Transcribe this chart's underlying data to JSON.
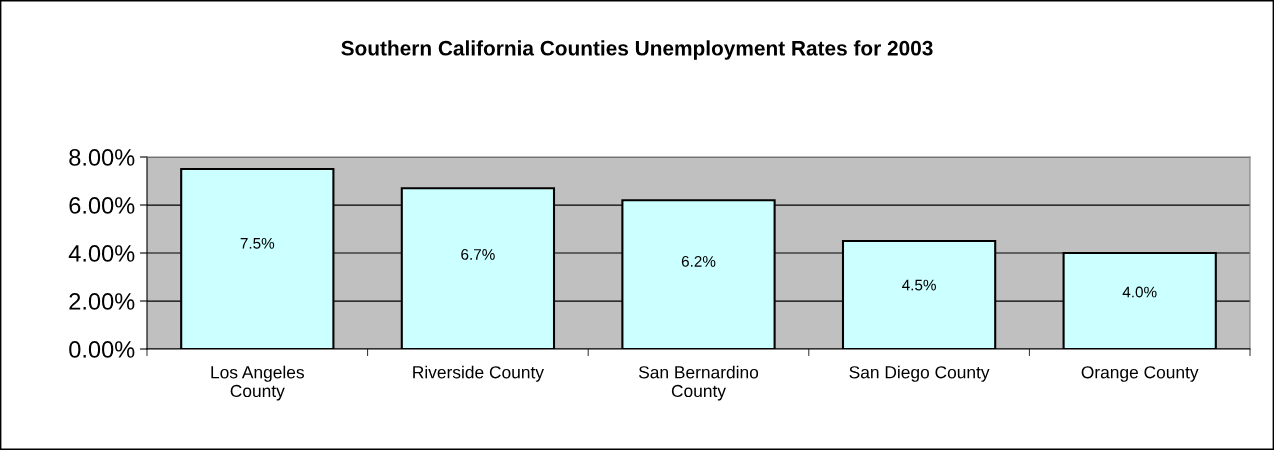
{
  "chart_data": {
    "type": "bar",
    "title": "Southern California Counties Unemployment Rates for 2003",
    "categories": [
      "Los Angeles County",
      "Riverside County",
      "San Bernardino County",
      "San Diego County",
      "Orange County"
    ],
    "values": [
      7.5,
      6.7,
      6.2,
      4.5,
      4.0
    ],
    "value_labels": [
      "7.5%",
      "6.7%",
      "6.2%",
      "4.5%",
      "4.0%"
    ],
    "color": "#ccffff",
    "ylim": [
      0,
      8
    ],
    "yticks": [
      {
        "value": 0,
        "label": "0.00%"
      },
      {
        "value": 2,
        "label": "2.00%"
      },
      {
        "value": 4,
        "label": "4.00%"
      },
      {
        "value": 6,
        "label": "6.00%"
      },
      {
        "value": 8,
        "label": "8.00%"
      }
    ],
    "grid": "y",
    "legend": false
  }
}
